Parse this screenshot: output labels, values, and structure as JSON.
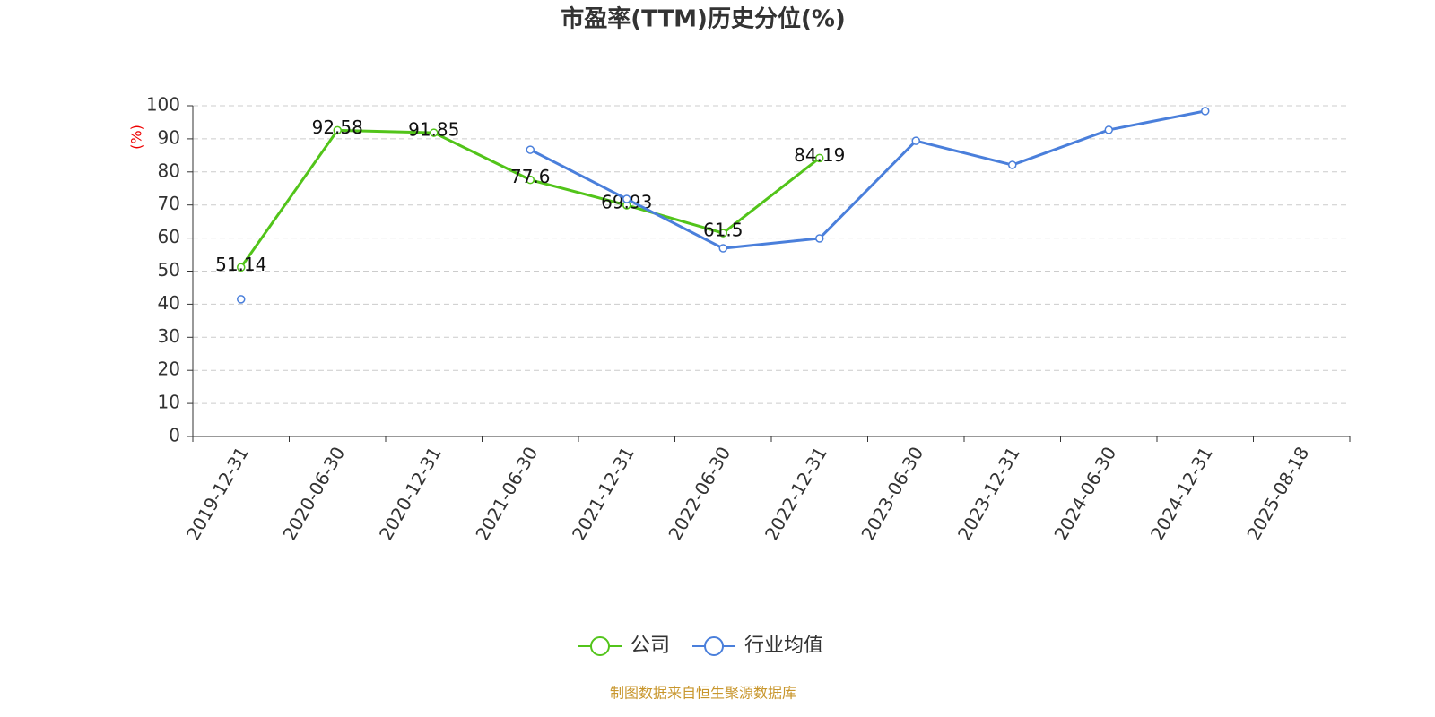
{
  "chart_data": {
    "type": "line",
    "title": "市盈率(TTM)历史分位(%)",
    "y_label": "(%)",
    "source": "制图数据来自恒生聚源数据库",
    "categories": [
      "2019-12-31",
      "2020-06-30",
      "2020-12-31",
      "2021-06-30",
      "2021-12-31",
      "2022-06-30",
      "2022-12-31",
      "2023-06-30",
      "2023-12-31",
      "2024-06-30",
      "2024-12-31",
      "2025-08-18"
    ],
    "series": [
      {
        "name": "公司",
        "color": "#52c41a",
        "labels": true,
        "values": [
          51.14,
          92.58,
          91.85,
          77.6,
          69.93,
          61.5,
          84.19,
          null,
          null,
          null,
          null,
          null
        ]
      },
      {
        "name": "行业均值",
        "color": "#4a7fdb",
        "labels": false,
        "values": [
          41.5,
          null,
          null,
          86.7,
          71.8,
          56.9,
          59.9,
          89.4,
          82.1,
          92.7,
          98.4,
          null
        ]
      }
    ],
    "ylim": [
      0,
      100
    ],
    "yticks": [
      0,
      10,
      20,
      30,
      40,
      50,
      60,
      70,
      80,
      90,
      100
    ],
    "grid": true,
    "legend": "bottom"
  }
}
